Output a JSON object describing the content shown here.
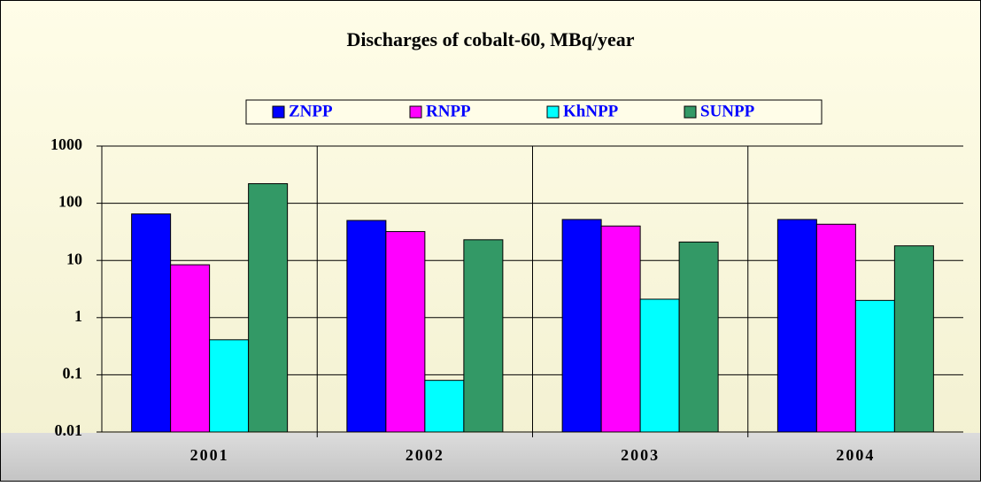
{
  "chart_data": {
    "type": "bar",
    "title": "Discharges of cobalt-60, MBq/year",
    "categories": [
      "2001",
      "2002",
      "2003",
      "2004"
    ],
    "series": [
      {
        "name": "ZNPP",
        "color": "#0000ff",
        "values": [
          65,
          50,
          52,
          52
        ]
      },
      {
        "name": "RNPP",
        "color": "#ff00ff",
        "values": [
          8.4,
          32,
          40,
          43
        ]
      },
      {
        "name": "KhNPP",
        "color": "#00ffff",
        "values": [
          0.41,
          0.08,
          2.1,
          2
        ]
      },
      {
        "name": "SUNPP",
        "color": "#339966",
        "values": [
          220,
          23,
          21,
          18
        ]
      }
    ],
    "ylim": [
      0.01,
      1000
    ],
    "yticks": [
      0.01,
      0.1,
      1,
      10,
      100,
      1000
    ],
    "log_scale": true,
    "grid": true,
    "legend": "top"
  }
}
